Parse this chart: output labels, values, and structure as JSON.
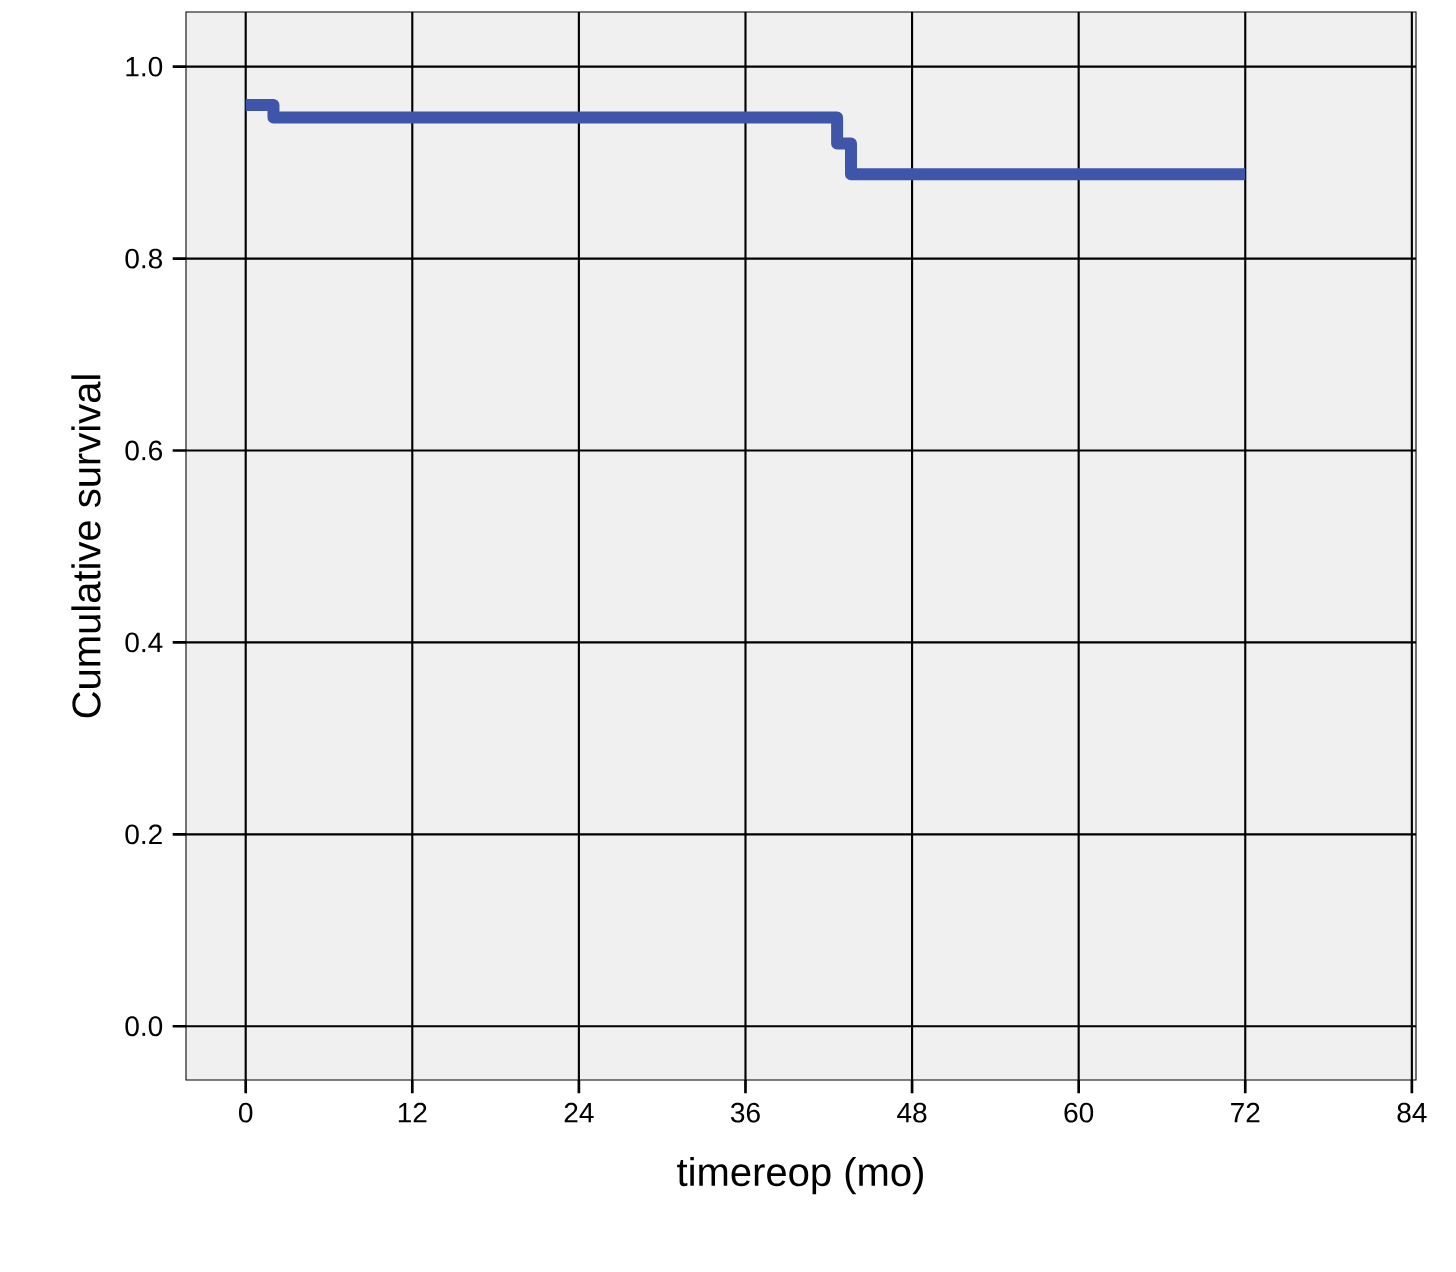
{
  "chart_data": {
    "type": "step",
    "xlabel": "timereop (mo)",
    "ylabel": "Cumulative survival",
    "x": [
      0,
      2,
      42.6,
      43.6,
      72
    ],
    "series": [
      {
        "color": "#3f55a9",
        "values": [
          0.96,
          0.947,
          0.92,
          0.888,
          0.888
        ]
      }
    ],
    "xlim": [
      -4.3,
      84.3
    ],
    "xticks": [
      0,
      12,
      24,
      36,
      48,
      60,
      72,
      84
    ],
    "ylim": [
      -0.056,
      1.057
    ],
    "yticks": [
      {
        "value": 0,
        "label": "0.0"
      },
      {
        "value": 0.2,
        "label": "0.2"
      },
      {
        "value": 0.4,
        "label": "0.4"
      },
      {
        "value": 0.6,
        "label": "0.6"
      },
      {
        "value": 0.8,
        "label": "0.8"
      },
      {
        "value": 1,
        "label": "1.0"
      }
    ],
    "grid": true,
    "marker": "none",
    "line_style": "solid"
  }
}
